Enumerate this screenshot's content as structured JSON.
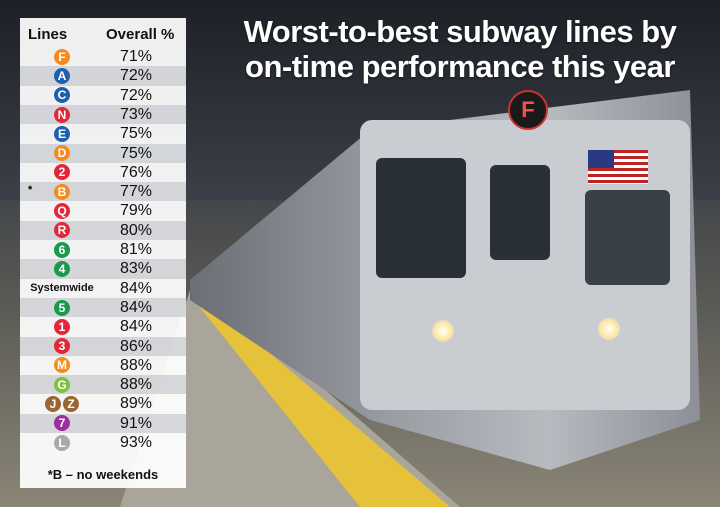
{
  "title_line1": "Worst-to-best subway lines by",
  "title_line2": "on-time performance this year",
  "train_sign": "F",
  "chart_data": {
    "type": "table",
    "columns": [
      "Lines",
      "Overall %"
    ],
    "rows": [
      {
        "lines": [
          "F"
        ],
        "colors": [
          "#f58a1f"
        ],
        "value": "71%"
      },
      {
        "lines": [
          "A"
        ],
        "colors": [
          "#1f5fb0"
        ],
        "value": "72%"
      },
      {
        "lines": [
          "C"
        ],
        "colors": [
          "#1f5fb0"
        ],
        "value": "72%"
      },
      {
        "lines": [
          "N"
        ],
        "colors": [
          "#e0283a"
        ],
        "value": "73%"
      },
      {
        "lines": [
          "E"
        ],
        "colors": [
          "#1f5fb0"
        ],
        "value": "75%"
      },
      {
        "lines": [
          "D"
        ],
        "colors": [
          "#f58a1f"
        ],
        "value": "75%"
      },
      {
        "lines": [
          "2"
        ],
        "colors": [
          "#e0283a"
        ],
        "value": "76%"
      },
      {
        "lines": [
          "B"
        ],
        "colors": [
          "#f58a1f"
        ],
        "value": "77%",
        "mark": "*"
      },
      {
        "lines": [
          "Q"
        ],
        "colors": [
          "#e0283a"
        ],
        "value": "79%"
      },
      {
        "lines": [
          "R"
        ],
        "colors": [
          "#e0283a"
        ],
        "value": "80%"
      },
      {
        "lines": [
          "6"
        ],
        "colors": [
          "#1a9a4a"
        ],
        "value": "81%"
      },
      {
        "lines": [
          "4"
        ],
        "colors": [
          "#1a9a4a"
        ],
        "value": "83%"
      },
      {
        "label": "Systemwide",
        "value": "84%"
      },
      {
        "lines": [
          "5"
        ],
        "colors": [
          "#1a9a4a"
        ],
        "value": "84%"
      },
      {
        "lines": [
          "1"
        ],
        "colors": [
          "#e0283a"
        ],
        "value": "84%"
      },
      {
        "lines": [
          "3"
        ],
        "colors": [
          "#e0283a"
        ],
        "value": "86%"
      },
      {
        "lines": [
          "M"
        ],
        "colors": [
          "#f58a1f"
        ],
        "value": "88%"
      },
      {
        "lines": [
          "G"
        ],
        "colors": [
          "#7cc242"
        ],
        "value": "88%"
      },
      {
        "lines": [
          "J",
          "Z"
        ],
        "colors": [
          "#996633",
          "#996633"
        ],
        "value": "89%"
      },
      {
        "lines": [
          "7"
        ],
        "colors": [
          "#9b2f9e"
        ],
        "value": "91%"
      },
      {
        "lines": [
          "L"
        ],
        "colors": [
          "#a7a9ac"
        ],
        "value": "93%"
      }
    ],
    "footnote": "*B – no weekends"
  }
}
